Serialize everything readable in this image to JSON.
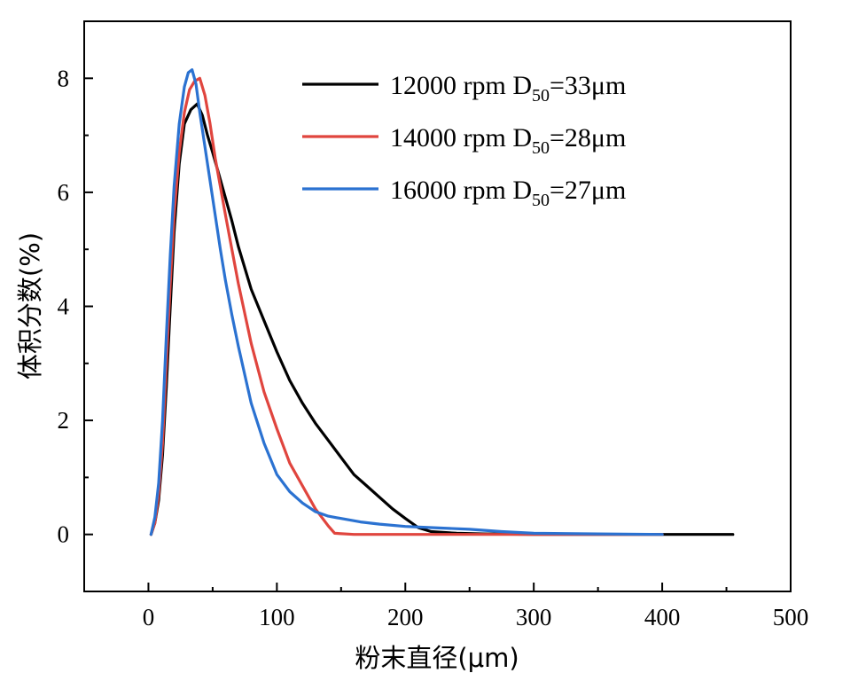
{
  "chart_data": {
    "type": "line",
    "xlabel": "粉末直径(μm)",
    "ylabel": "体积分数(%)",
    "xlim": [
      -50,
      500
    ],
    "ylim": [
      -1,
      9
    ],
    "xticks": [
      0,
      100,
      200,
      300,
      400,
      500
    ],
    "yticks": [
      0,
      2,
      4,
      6,
      8
    ],
    "xtick_labels": [
      "0",
      "100",
      "200",
      "300",
      "400",
      "500"
    ],
    "ytick_labels": [
      "0",
      "2",
      "4",
      "6",
      "8"
    ],
    "grid": false,
    "legend_position": "top-right",
    "series": [
      {
        "name": "12000 rpm",
        "label_prefix": "12000 rpm   D",
        "label_sub": "50",
        "label_suffix": "=33μm",
        "color": "#000000",
        "x": [
          2,
          5,
          8,
          11,
          14,
          17,
          20,
          24,
          28,
          33,
          38,
          42,
          46,
          50,
          55,
          60,
          65,
          70,
          80,
          90,
          100,
          110,
          120,
          130,
          140,
          150,
          160,
          170,
          180,
          190,
          200,
          210,
          220,
          240,
          260,
          300,
          350,
          400,
          455
        ],
        "y": [
          0.0,
          0.2,
          0.6,
          1.4,
          2.6,
          4.0,
          5.3,
          6.5,
          7.2,
          7.45,
          7.55,
          7.35,
          7.0,
          6.7,
          6.3,
          5.9,
          5.5,
          5.05,
          4.3,
          3.75,
          3.2,
          2.7,
          2.3,
          1.95,
          1.65,
          1.35,
          1.05,
          0.85,
          0.65,
          0.45,
          0.28,
          0.12,
          0.05,
          0.02,
          0.01,
          0.0,
          0.0,
          0.0,
          0.0
        ]
      },
      {
        "name": "14000 rpm",
        "label_prefix": "14000 rpm   D",
        "label_sub": "50",
        "label_suffix": "=28μm",
        "color": "#e0453e",
        "x": [
          2,
          5,
          8,
          11,
          14,
          17,
          20,
          24,
          28,
          32,
          36,
          40,
          44,
          48,
          52,
          56,
          60,
          65,
          70,
          80,
          90,
          100,
          110,
          120,
          130,
          140,
          145,
          160,
          200,
          250,
          300,
          350,
          400
        ],
        "y": [
          0.0,
          0.2,
          0.7,
          1.6,
          3.0,
          4.4,
          5.6,
          6.7,
          7.4,
          7.8,
          7.95,
          8.0,
          7.7,
          7.2,
          6.6,
          6.1,
          5.6,
          5.0,
          4.4,
          3.35,
          2.5,
          1.85,
          1.25,
          0.85,
          0.45,
          0.15,
          0.02,
          0.0,
          0.0,
          0.0,
          0.0,
          0.0,
          0.0
        ]
      },
      {
        "name": "16000 rpm",
        "label_prefix": "16000 rpm   D",
        "label_sub": "50",
        "label_suffix": "=27μm",
        "color": "#2b72d1",
        "x": [
          2,
          5,
          8,
          11,
          14,
          17,
          20,
          24,
          28,
          31,
          34,
          37,
          40,
          44,
          48,
          52,
          56,
          60,
          65,
          70,
          80,
          90,
          100,
          110,
          120,
          130,
          140,
          150,
          165,
          180,
          200,
          220,
          250,
          275,
          300,
          350,
          400
        ],
        "y": [
          0.0,
          0.3,
          0.9,
          2.0,
          3.5,
          4.9,
          6.1,
          7.2,
          7.85,
          8.1,
          8.15,
          7.9,
          7.4,
          6.8,
          6.2,
          5.6,
          5.0,
          4.45,
          3.85,
          3.3,
          2.3,
          1.6,
          1.05,
          0.75,
          0.55,
          0.4,
          0.32,
          0.28,
          0.22,
          0.18,
          0.14,
          0.12,
          0.09,
          0.05,
          0.02,
          0.01,
          0.0
        ]
      }
    ]
  }
}
